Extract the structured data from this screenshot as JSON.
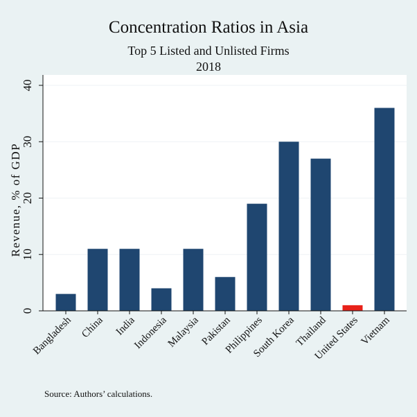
{
  "chart_data": {
    "type": "bar",
    "title": "Concentration Ratios in Asia",
    "subtitle": "Top 5 Listed and Unlisted Firms",
    "subtitle2": "2018",
    "xlabel": "",
    "ylabel": "Revenue, % of GDP",
    "ylim": [
      0,
      40
    ],
    "yticks": [
      0,
      10,
      20,
      30,
      40
    ],
    "ytick_labels": [
      "0",
      "10",
      "20",
      "30",
      "40"
    ],
    "categories": [
      "Bangladesh",
      "China",
      "India",
      "Indonesia",
      "Malaysia",
      "Pakistan",
      "Philippines",
      "South Korea",
      "Thailand",
      "United States",
      "Vietnam"
    ],
    "values": [
      3,
      11,
      11,
      4,
      11,
      6,
      19,
      30,
      27,
      1,
      36
    ],
    "highlight": "United States",
    "colors": {
      "bar": "#1f4670",
      "highlight": "#e8221a",
      "grid": "#ffffff",
      "plot_bg": "#ffffff",
      "page_bg": "#eaf2f3"
    },
    "grid": true,
    "note": "Source: Authors’ calculations."
  }
}
